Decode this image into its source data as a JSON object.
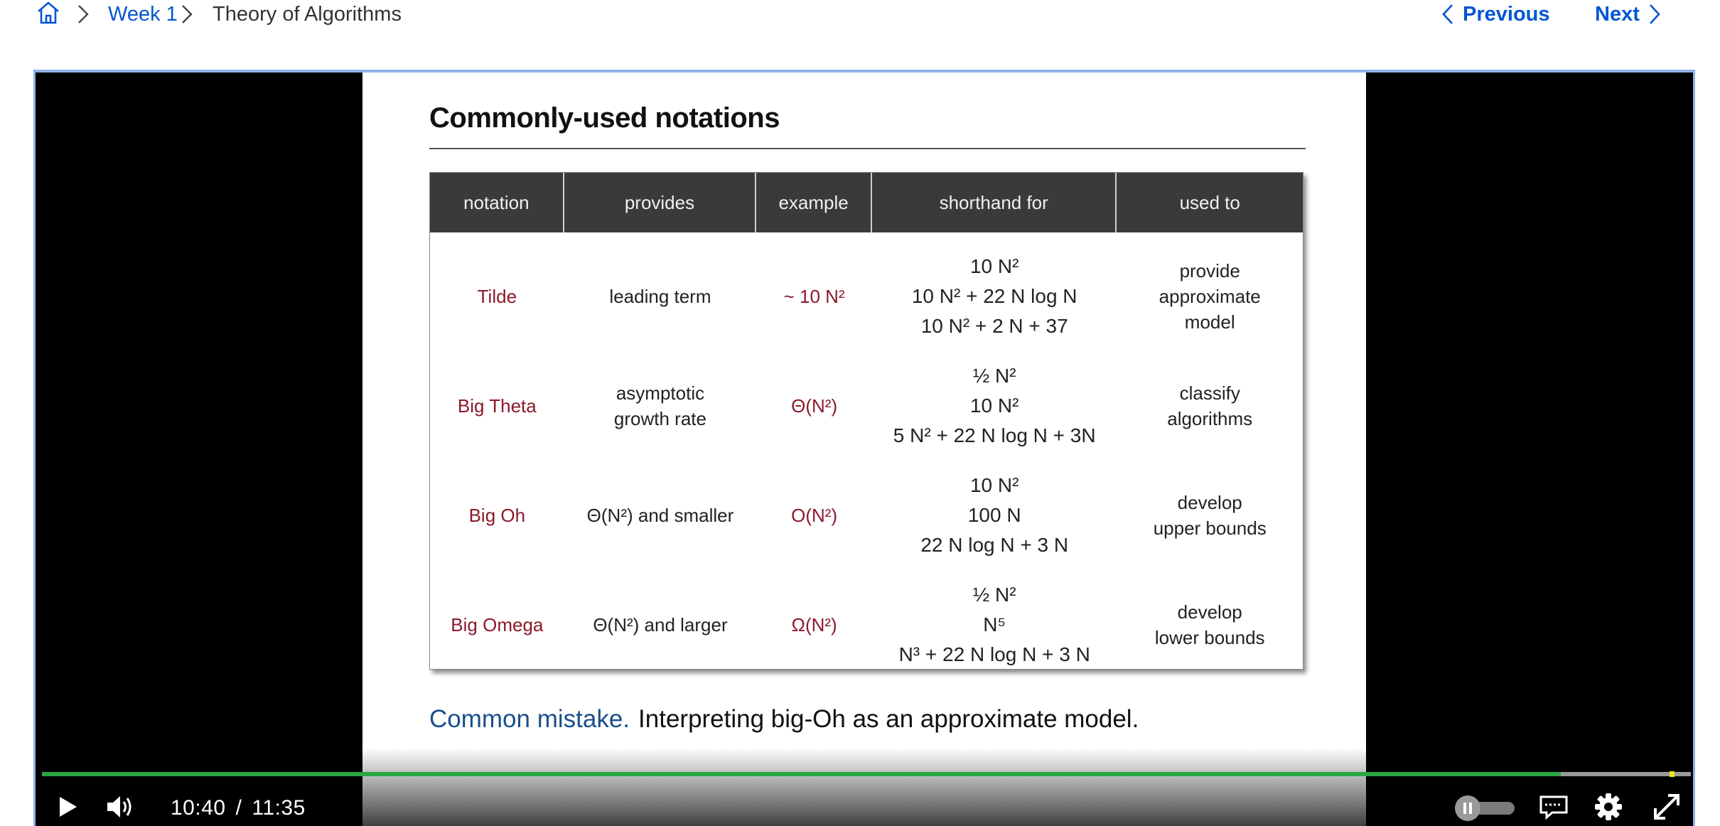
{
  "breadcrumb": {
    "home_icon": "home-icon",
    "items": [
      "Week 1",
      "Theory of Algorithms"
    ]
  },
  "nav": {
    "previous": "Previous",
    "next": "Next"
  },
  "colors": {
    "link": "#0056d2",
    "progress": "#29a642",
    "notation_red": "#8b1a2b",
    "header_bg": "#3a3a3a"
  },
  "slide": {
    "title": "Commonly-used notations",
    "headers": [
      "notation",
      "provides",
      "example",
      "shorthand for",
      "used to"
    ],
    "rows": [
      {
        "notation": "Tilde",
        "provides": [
          "leading term"
        ],
        "example": "~ 10 N²",
        "shorthand": [
          "10 N²",
          "10 N² + 22 N log N",
          "10 N² + 2 N + 37"
        ],
        "used_to": [
          "provide",
          "approximate",
          "model"
        ]
      },
      {
        "notation": "Big Theta",
        "provides": [
          "asymptotic",
          "growth rate"
        ],
        "example": "Θ(N²)",
        "shorthand": [
          "½ N²",
          "10 N²",
          "5 N² + 22 N log N + 3N"
        ],
        "used_to": [
          "classify",
          "algorithms"
        ]
      },
      {
        "notation": "Big Oh",
        "provides": [
          "Θ(N²) and smaller"
        ],
        "example": "O(N²)",
        "shorthand": [
          "10 N²",
          "100 N",
          "22 N log N + 3 N"
        ],
        "used_to": [
          "develop",
          "upper bounds"
        ]
      },
      {
        "notation": "Big Omega",
        "provides": [
          "Θ(N²) and larger"
        ],
        "example": "Ω(N²)",
        "shorthand": [
          "½ N²",
          "N⁵",
          "N³ + 22 N log N + 3 N"
        ],
        "used_to": [
          "develop",
          "lower bounds"
        ]
      }
    ],
    "mistake_lead": "Common mistake.",
    "mistake_text": "Interpreting big-Oh as an approximate model."
  },
  "player": {
    "current_time": "10:40",
    "time_separator": "/",
    "duration": "11:35",
    "progress_fraction": 0.921,
    "buffered_marker_fraction": 0.987,
    "controls": [
      "play-icon",
      "volume-icon",
      "speed-toggle",
      "captions-icon",
      "settings-icon",
      "fullscreen-icon"
    ]
  }
}
